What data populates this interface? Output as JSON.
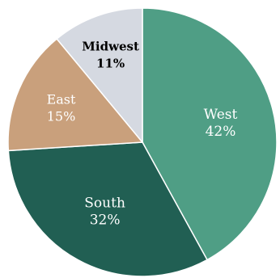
{
  "chart_data": {
    "type": "pie",
    "slices": [
      {
        "name": "West",
        "value": 42,
        "label": "42%",
        "color": "#4f9e85"
      },
      {
        "name": "South",
        "value": 32,
        "label": "32%",
        "color": "#215f53"
      },
      {
        "name": "East",
        "value": 15,
        "label": "15%",
        "color": "#c9a07c"
      },
      {
        "name": "Midwest",
        "value": 11,
        "label": "11%",
        "color": "#d5d9e1"
      }
    ]
  }
}
